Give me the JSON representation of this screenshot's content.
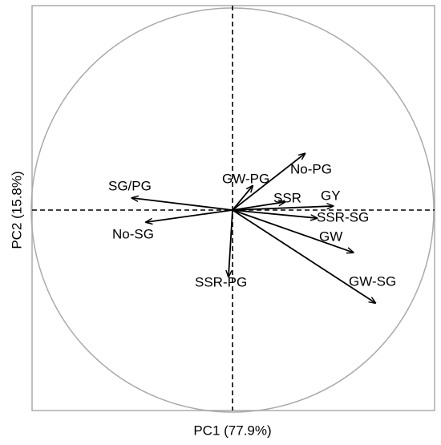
{
  "chart_data": {
    "type": "loading-vectors",
    "xlabel": "PC1 (77.9%)",
    "ylabel": "PC2 (15.8%)",
    "categories": [
      "SG/PG",
      "No-SG",
      "GW-PG",
      "No-PG",
      "SSR",
      "GY",
      "SSR-SG",
      "GW",
      "GW-SG",
      "SSR-PG"
    ],
    "x": [
      -0.5,
      -0.43,
      0.1,
      0.36,
      0.26,
      0.5,
      0.42,
      0.6,
      0.71,
      -0.02
    ],
    "values": [
      0.06,
      -0.06,
      0.12,
      0.28,
      0.04,
      0.02,
      -0.04,
      -0.21,
      -0.46,
      -0.33
    ],
    "color": "#000000",
    "xlim": [
      -1,
      1
    ],
    "ylim": [
      -1,
      1
    ]
  }
}
